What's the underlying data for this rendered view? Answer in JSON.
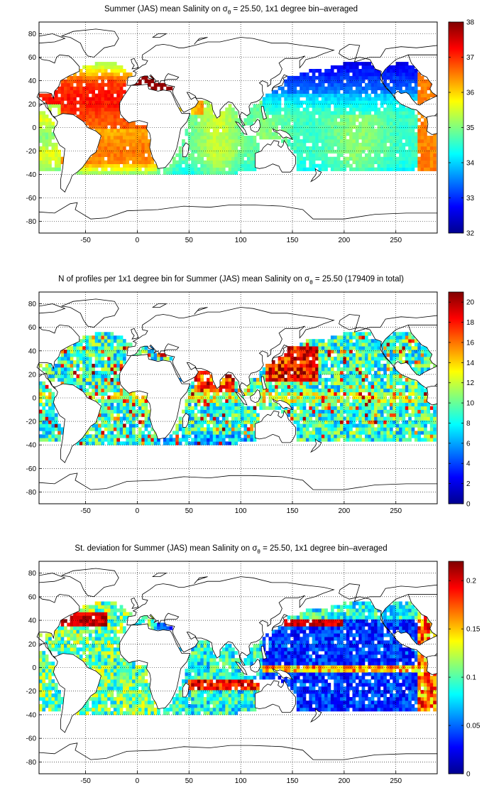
{
  "colors": {
    "land_outline": "#000000",
    "grid": "#000000",
    "background": "#ffffff",
    "colormap": "jet"
  },
  "chart_data": [
    {
      "type": "heatmap",
      "title": {
        "pre": "Summer (JAS) mean Salinity on ",
        "sym": "σ",
        "sub": "θ",
        "post": " = 25.50, 1x1 degree bin–averaged"
      },
      "xlabel": "",
      "ylabel": "",
      "xlim": [
        -95,
        290
      ],
      "ylim": [
        -90,
        90
      ],
      "grid": true,
      "projection": "equirectangular",
      "land": "white with black coastline",
      "x_ticks": [
        "-50",
        "0",
        "50",
        "100",
        "150",
        "200",
        "250"
      ],
      "y_ticks": [
        "80",
        "60",
        "40",
        "20",
        "0",
        "-20",
        "-40",
        "-60",
        "-80"
      ],
      "colorbar": {
        "min": 32,
        "max": 38,
        "ticks": [
          "38",
          "37",
          "36",
          "35",
          "34",
          "33",
          "32"
        ],
        "colormap": "jet"
      },
      "approx_field_values": [
        {
          "region": "North Atlantic subtropics",
          "value": 37.0
        },
        {
          "region": "Mediterranean",
          "value": 38.0
        },
        {
          "region": "South Atlantic subtropics",
          "value": 36.5
        },
        {
          "region": "Indian Ocean",
          "value": 35.0
        },
        {
          "region": "Tropical Pacific",
          "value": 34.8
        },
        {
          "region": "North Pacific subpolar",
          "value": 33.0
        },
        {
          "region": "Southern Ocean (~40S)",
          "value": 34.5
        }
      ]
    },
    {
      "type": "heatmap",
      "title": {
        "pre": "N of profiles per 1x1 degree bin for Summer (JAS) mean Salinity on ",
        "sym": "σ",
        "sub": "θ",
        "post": " = 25.50 (179409 in total)"
      },
      "xlabel": "",
      "ylabel": "",
      "xlim": [
        -95,
        290
      ],
      "ylim": [
        -90,
        90
      ],
      "grid": true,
      "projection": "equirectangular",
      "land": "white with black coastline",
      "x_ticks": [
        "-50",
        "0",
        "50",
        "100",
        "150",
        "200",
        "250"
      ],
      "y_ticks": [
        "80",
        "60",
        "40",
        "20",
        "0",
        "-20",
        "-40",
        "-60",
        "-80"
      ],
      "colorbar": {
        "min": 0,
        "max": 21,
        "ticks": [
          "20",
          "18",
          "16",
          "14",
          "12",
          "10",
          "8",
          "6",
          "4",
          "2",
          "0"
        ],
        "colormap": "jet"
      },
      "approx_field_values": [
        {
          "region": "Northwest Pacific (Kuroshio)",
          "value": 20
        },
        {
          "region": "Arabian Sea / Bay of Bengal",
          "value": 18
        },
        {
          "region": "Open Pacific",
          "value": 8
        },
        {
          "region": "Atlantic",
          "value": 7
        },
        {
          "region": "Southern Indian Ocean",
          "value": 5
        }
      ]
    },
    {
      "type": "heatmap",
      "title": {
        "pre": "St. deviation for Summer (JAS) mean Salinity on ",
        "sym": "σ",
        "sub": "θ",
        "post": " = 25.50, 1x1 degree bin–averaged"
      },
      "xlabel": "",
      "ylabel": "",
      "xlim": [
        -95,
        290
      ],
      "ylim": [
        -90,
        90
      ],
      "grid": true,
      "projection": "equirectangular",
      "land": "white with black coastline",
      "x_ticks": [
        "-50",
        "0",
        "50",
        "100",
        "150",
        "200",
        "250"
      ],
      "y_ticks": [
        "80",
        "60",
        "40",
        "20",
        "0",
        "-20",
        "-40",
        "-60",
        "-80"
      ],
      "colorbar": {
        "min": 0,
        "max": 0.22,
        "ticks": [
          "0.2",
          "0.15",
          "0.1",
          "0.05",
          "0"
        ],
        "colormap": "jet"
      },
      "approx_field_values": [
        {
          "region": "Gulf Stream",
          "value": 0.22
        },
        {
          "region": "Kuroshio extension",
          "value": 0.2
        },
        {
          "region": "Equatorial Pacific band",
          "value": 0.15
        },
        {
          "region": "South Indian Ocean ~15S",
          "value": 0.2
        },
        {
          "region": "Subtropical Pacific",
          "value": 0.03
        }
      ]
    }
  ]
}
